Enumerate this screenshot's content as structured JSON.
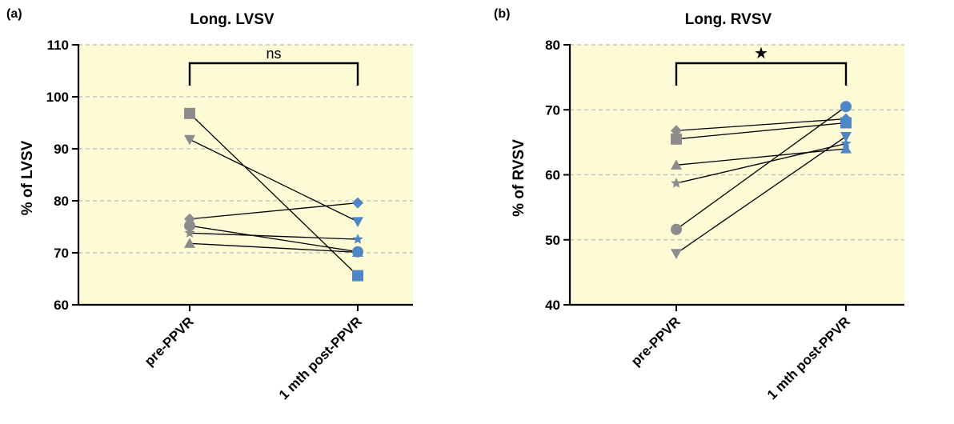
{
  "colors": {
    "plot_background": "#fdfad6",
    "grid": "#bdbdbd",
    "pre_marker": "#8c8c8c",
    "post_marker": "#4f86c6",
    "line": "#000000"
  },
  "chart_data": [
    {
      "type": "scatter",
      "panel_label": "(a)",
      "title": "Long. LVSV",
      "ylabel": "% of LVSV",
      "xlabel": "",
      "categories": [
        "pre-PPVR",
        "1 mth post-PPVR"
      ],
      "ylim": [
        60,
        110
      ],
      "yticks": [
        60,
        70,
        80,
        90,
        100,
        110
      ],
      "grid": true,
      "significance": "ns",
      "series": [
        {
          "marker": "square",
          "values": [
            96.8,
            65.6
          ]
        },
        {
          "marker": "triangle-down",
          "values": [
            91.8,
            76.0
          ]
        },
        {
          "marker": "diamond",
          "values": [
            76.5,
            79.6
          ]
        },
        {
          "marker": "circle",
          "values": [
            75.2,
            70.2
          ]
        },
        {
          "marker": "star",
          "values": [
            73.8,
            72.6
          ]
        },
        {
          "marker": "triangle-up",
          "values": [
            71.8,
            70.1
          ]
        }
      ]
    },
    {
      "type": "scatter",
      "panel_label": "(b)",
      "title": "Long. RVSV",
      "ylabel": "% of RVSV",
      "xlabel": "",
      "categories": [
        "pre-PPVR",
        "1 mth post-PPVR"
      ],
      "ylim": [
        40,
        80
      ],
      "yticks": [
        40,
        50,
        60,
        70,
        80
      ],
      "grid": true,
      "significance": "★",
      "series": [
        {
          "marker": "diamond",
          "values": [
            66.8,
            68.6
          ]
        },
        {
          "marker": "square",
          "values": [
            65.5,
            68.0
          ]
        },
        {
          "marker": "triangle-up",
          "values": [
            61.5,
            64.0
          ]
        },
        {
          "marker": "star",
          "values": [
            58.7,
            64.8
          ]
        },
        {
          "marker": "circle",
          "values": [
            51.6,
            70.5
          ]
        },
        {
          "marker": "triangle-down",
          "values": [
            47.9,
            65.9
          ]
        }
      ]
    }
  ]
}
